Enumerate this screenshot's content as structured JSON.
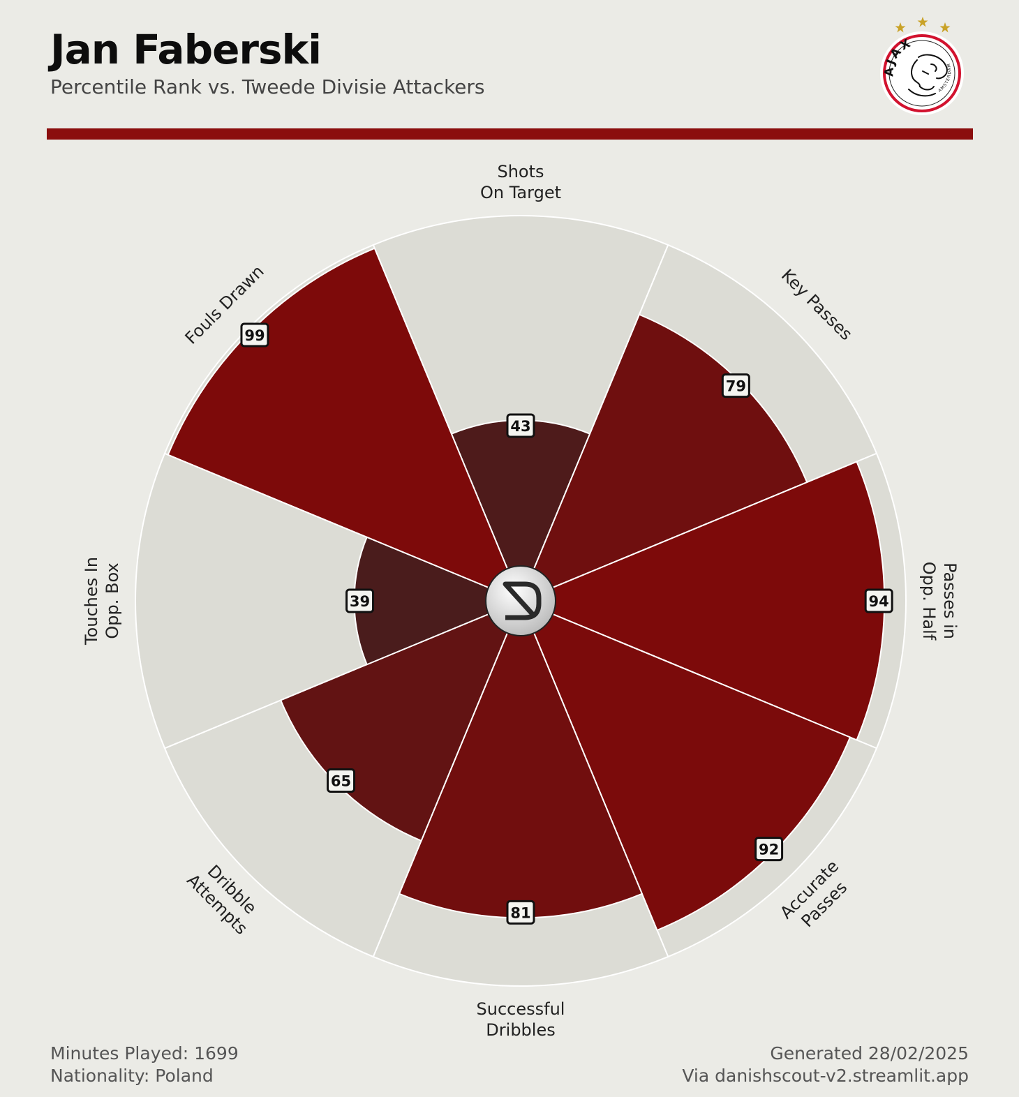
{
  "header": {
    "title": "Jan Faberski",
    "subtitle": "Percentile Rank vs. Tweede Divisie Attackers"
  },
  "club_logo": {
    "icon": "ajax-amsterdam-crest",
    "text_top": "AJAX",
    "text_bottom": "AMSTERDAM",
    "stars": 3,
    "colors": {
      "ring": "#d2122e",
      "star": "#c9a227"
    }
  },
  "center_logo": {
    "icon": "danishscout-logo"
  },
  "colors": {
    "background": "#ebebe6",
    "max_wedge": "#dcdcd5",
    "divider": "#8b0e0e",
    "high": "#7d0a0a",
    "low": "#4a1c1c"
  },
  "chart_data": {
    "type": "pie",
    "subtype": "radial-percentile",
    "categories": [
      [
        "Shots",
        "On Target"
      ],
      [
        "Key Passes"
      ],
      [
        "Passes in",
        "Opp. Half"
      ],
      [
        "Accurate",
        "Passes"
      ],
      [
        "Successful",
        "Dribbles"
      ],
      [
        "Dribble",
        "Attempts"
      ],
      [
        "Touches In",
        "Opp. Box"
      ],
      [
        "Fouls Drawn"
      ]
    ],
    "values": [
      43,
      79,
      94,
      92,
      81,
      65,
      39,
      99
    ],
    "range": [
      0,
      100
    ]
  },
  "footer": {
    "minutes": "Minutes Played: 1699",
    "nationality": "Nationality: Poland",
    "generated": "Generated 28/02/2025",
    "source": "Via danishscout-v2.streamlit.app"
  }
}
